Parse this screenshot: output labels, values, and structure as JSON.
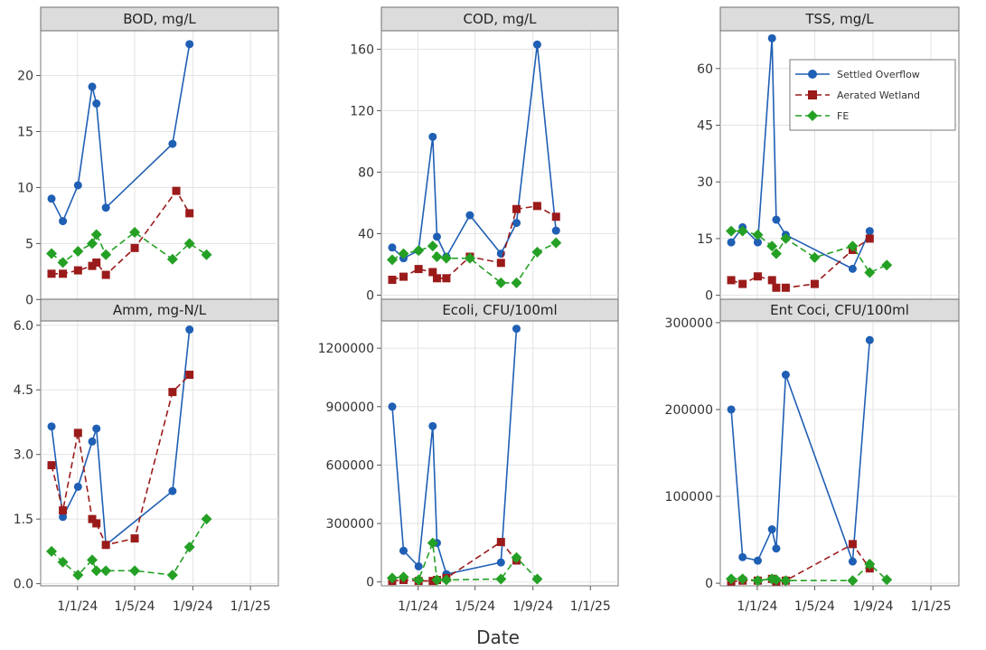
{
  "xlabel": "Date",
  "colors": {
    "Settled Overflow": "#1f5fb4",
    "Aerated Wetland": "#9b1b1b",
    "FE": "#24a024",
    "strip": "#dcdcdc",
    "grid": "#e3e3e3"
  },
  "legend": {
    "placement": "top-right of TSS panel",
    "entries": [
      "Settled Overflow",
      "Aerated Wetland",
      "FE"
    ]
  },
  "chart_data": [
    {
      "type": "line",
      "title": "BOD, mg/L",
      "xlabel": "Date",
      "x_ticks": [
        "1/1/24",
        "1/5/24",
        "1/9/24",
        "1/1/25"
      ],
      "xlim": [
        "2023-10-15",
        "2025-03-01"
      ],
      "ylim": [
        -0.3,
        24.0
      ],
      "y_ticks": [
        0,
        5,
        10,
        15,
        20
      ],
      "y_tick_labels": [
        "0",
        "5",
        "10",
        "15",
        "20"
      ],
      "grid": true,
      "series": [
        {
          "name": "Settled Overflow",
          "marker": "circle",
          "line": "solid",
          "points": [
            [
              "2023-11-07",
              9.0
            ],
            [
              "2023-12-01",
              7.0
            ],
            [
              "2024-01-02",
              10.2
            ],
            [
              "2024-02-01",
              19.0
            ],
            [
              "2024-02-10",
              17.5
            ],
            [
              "2024-03-01",
              8.2
            ],
            [
              "2024-07-20",
              13.9
            ],
            [
              "2024-08-25",
              22.8
            ]
          ]
        },
        {
          "name": "Aerated Wetland",
          "marker": "square",
          "line": "dashed",
          "points": [
            [
              "2023-11-07",
              2.3
            ],
            [
              "2023-12-01",
              2.3
            ],
            [
              "2024-01-02",
              2.6
            ],
            [
              "2024-02-01",
              3.0
            ],
            [
              "2024-02-10",
              3.3
            ],
            [
              "2024-03-01",
              2.2
            ],
            [
              "2024-05-01",
              4.6
            ],
            [
              "2024-07-28",
              9.7
            ],
            [
              "2024-08-25",
              7.7
            ]
          ]
        },
        {
          "name": "FE",
          "marker": "diamond",
          "line": "dashed",
          "points": [
            [
              "2023-11-07",
              4.1
            ],
            [
              "2023-12-01",
              3.3
            ],
            [
              "2024-01-02",
              4.3
            ],
            [
              "2024-02-01",
              5.0
            ],
            [
              "2024-02-10",
              5.8
            ],
            [
              "2024-03-01",
              4.0
            ],
            [
              "2024-05-01",
              6.0
            ],
            [
              "2024-07-20",
              3.6
            ],
            [
              "2024-08-25",
              5.0
            ],
            [
              "2024-09-30",
              4.0
            ]
          ]
        }
      ]
    },
    {
      "type": "line",
      "title": "COD, mg/L",
      "xlabel": "Date",
      "x_ticks": [
        "1/1/24",
        "1/5/24",
        "1/9/24",
        "1/1/25"
      ],
      "xlim": [
        "2023-10-15",
        "2025-03-01"
      ],
      "ylim": [
        -5,
        172
      ],
      "y_ticks": [
        0,
        40,
        80,
        120,
        160
      ],
      "y_tick_labels": [
        "0",
        "40",
        "80",
        "120",
        "160"
      ],
      "grid": true,
      "series": [
        {
          "name": "Settled Overflow",
          "marker": "circle",
          "line": "solid",
          "points": [
            [
              "2023-11-07",
              31
            ],
            [
              "2023-12-01",
              24
            ],
            [
              "2024-01-02",
              29
            ],
            [
              "2024-02-01",
              103
            ],
            [
              "2024-02-10",
              38
            ],
            [
              "2024-03-01",
              25
            ],
            [
              "2024-04-20",
              52
            ],
            [
              "2024-06-25",
              27
            ],
            [
              "2024-07-28",
              47
            ],
            [
              "2024-09-10",
              163
            ],
            [
              "2024-10-20",
              42
            ]
          ]
        },
        {
          "name": "Aerated Wetland",
          "marker": "square",
          "line": "dashed",
          "points": [
            [
              "2023-11-07",
              10
            ],
            [
              "2023-12-01",
              12
            ],
            [
              "2024-01-02",
              17
            ],
            [
              "2024-02-01",
              15
            ],
            [
              "2024-02-10",
              11
            ],
            [
              "2024-03-01",
              11
            ],
            [
              "2024-04-20",
              25
            ],
            [
              "2024-06-25",
              21
            ],
            [
              "2024-07-28",
              56
            ],
            [
              "2024-09-10",
              58
            ],
            [
              "2024-10-20",
              51
            ]
          ]
        },
        {
          "name": "FE",
          "marker": "diamond",
          "line": "dashed",
          "points": [
            [
              "2023-11-07",
              23
            ],
            [
              "2023-12-01",
              27
            ],
            [
              "2024-01-02",
              29
            ],
            [
              "2024-02-01",
              32
            ],
            [
              "2024-02-10",
              25
            ],
            [
              "2024-03-01",
              24
            ],
            [
              "2024-04-20",
              24
            ],
            [
              "2024-06-25",
              8
            ],
            [
              "2024-07-28",
              8
            ],
            [
              "2024-09-10",
              28
            ],
            [
              "2024-10-20",
              34
            ]
          ]
        }
      ]
    },
    {
      "type": "line",
      "title": "TSS, mg/L",
      "xlabel": "Date",
      "x_ticks": [
        "1/1/24",
        "1/5/24",
        "1/9/24",
        "1/1/25"
      ],
      "xlim": [
        "2023-10-15",
        "2025-03-01"
      ],
      "ylim": [
        -2,
        70
      ],
      "y_ticks": [
        0,
        15,
        30,
        45,
        60
      ],
      "y_tick_labels": [
        "0",
        "15",
        "30",
        "45",
        "60"
      ],
      "grid": true,
      "series": [
        {
          "name": "Settled Overflow",
          "marker": "circle",
          "line": "solid",
          "points": [
            [
              "2023-11-07",
              14
            ],
            [
              "2023-12-01",
              18
            ],
            [
              "2024-01-02",
              14
            ],
            [
              "2024-02-01",
              68
            ],
            [
              "2024-02-10",
              20
            ],
            [
              "2024-03-01",
              16
            ],
            [
              "2024-07-20",
              7
            ],
            [
              "2024-08-25",
              17
            ]
          ]
        },
        {
          "name": "Aerated Wetland",
          "marker": "square",
          "line": "dashed",
          "points": [
            [
              "2023-11-07",
              4
            ],
            [
              "2023-12-01",
              3
            ],
            [
              "2024-01-02",
              5
            ],
            [
              "2024-02-01",
              4
            ],
            [
              "2024-02-10",
              2
            ],
            [
              "2024-03-01",
              2
            ],
            [
              "2024-05-01",
              3
            ],
            [
              "2024-07-20",
              12
            ],
            [
              "2024-08-25",
              15
            ]
          ]
        },
        {
          "name": "FE",
          "marker": "diamond",
          "line": "dashed",
          "points": [
            [
              "2023-11-07",
              17
            ],
            [
              "2023-12-01",
              17
            ],
            [
              "2024-01-02",
              16
            ],
            [
              "2024-02-01",
              13
            ],
            [
              "2024-02-10",
              11
            ],
            [
              "2024-03-01",
              15
            ],
            [
              "2024-05-01",
              10
            ],
            [
              "2024-07-20",
              13
            ],
            [
              "2024-08-25",
              6
            ],
            [
              "2024-09-30",
              8
            ]
          ]
        }
      ]
    },
    {
      "type": "line",
      "title": "Amm, mg-N/L",
      "xlabel": "Date",
      "x_ticks": [
        "1/1/24",
        "1/5/24",
        "1/9/24",
        "1/1/25"
      ],
      "xlim": [
        "2023-10-15",
        "2025-03-01"
      ],
      "ylim": [
        -0.05,
        6.1
      ],
      "y_ticks": [
        0,
        1.5,
        3.0,
        4.5,
        6.0
      ],
      "y_tick_labels": [
        "0.0",
        "1.5",
        "3.0",
        "4.5",
        "6.0"
      ],
      "grid": true,
      "series": [
        {
          "name": "Settled Overflow",
          "marker": "circle",
          "line": "solid",
          "points": [
            [
              "2023-11-07",
              3.65
            ],
            [
              "2023-12-01",
              1.55
            ],
            [
              "2024-01-02",
              2.25
            ],
            [
              "2024-02-01",
              3.3
            ],
            [
              "2024-02-10",
              3.6
            ],
            [
              "2024-03-01",
              0.9
            ],
            [
              "2024-07-20",
              2.15
            ],
            [
              "2024-08-25",
              5.9
            ]
          ]
        },
        {
          "name": "Aerated Wetland",
          "marker": "square",
          "line": "dashed",
          "points": [
            [
              "2023-11-07",
              2.75
            ],
            [
              "2023-12-01",
              1.7
            ],
            [
              "2024-01-02",
              3.5
            ],
            [
              "2024-02-01",
              1.5
            ],
            [
              "2024-02-10",
              1.4
            ],
            [
              "2024-03-01",
              0.9
            ],
            [
              "2024-05-01",
              1.05
            ],
            [
              "2024-07-20",
              4.45
            ],
            [
              "2024-08-25",
              4.85
            ]
          ]
        },
        {
          "name": "FE",
          "marker": "diamond",
          "line": "dashed",
          "points": [
            [
              "2023-11-07",
              0.75
            ],
            [
              "2023-12-01",
              0.5
            ],
            [
              "2024-01-02",
              0.2
            ],
            [
              "2024-02-01",
              0.55
            ],
            [
              "2024-02-10",
              0.3
            ],
            [
              "2024-03-01",
              0.3
            ],
            [
              "2024-05-01",
              0.3
            ],
            [
              "2024-07-20",
              0.2
            ],
            [
              "2024-08-25",
              0.85
            ],
            [
              "2024-09-30",
              1.5
            ]
          ]
        }
      ]
    },
    {
      "type": "line",
      "title": "Ecoli, CFU/100ml",
      "xlabel": "Date",
      "x_ticks": [
        "1/1/24",
        "1/5/24",
        "1/9/24",
        "1/1/25"
      ],
      "xlim": [
        "2023-10-15",
        "2025-03-01"
      ],
      "ylim": [
        -20000,
        1340000
      ],
      "y_ticks": [
        0,
        300000,
        600000,
        900000,
        1200000
      ],
      "y_tick_labels": [
        "0",
        "300000",
        "600000",
        "900000",
        "1200000"
      ],
      "grid": true,
      "series": [
        {
          "name": "Settled Overflow",
          "marker": "circle",
          "line": "solid",
          "points": [
            [
              "2023-11-07",
              900000
            ],
            [
              "2023-12-01",
              160000
            ],
            [
              "2024-01-02",
              80000
            ],
            [
              "2024-02-01",
              800000
            ],
            [
              "2024-02-10",
              200000
            ],
            [
              "2024-03-01",
              40000
            ],
            [
              "2024-06-25",
              100000
            ],
            [
              "2024-07-28",
              1300000
            ]
          ]
        },
        {
          "name": "Aerated Wetland",
          "marker": "square",
          "line": "dashed",
          "points": [
            [
              "2023-11-07",
              5000
            ],
            [
              "2023-12-01",
              10000
            ],
            [
              "2024-01-02",
              5000
            ],
            [
              "2024-02-01",
              5000
            ],
            [
              "2024-02-10",
              10000
            ],
            [
              "2024-03-01",
              20000
            ],
            [
              "2024-06-25",
              205000
            ],
            [
              "2024-07-28",
              110000
            ]
          ]
        },
        {
          "name": "FE",
          "marker": "diamond",
          "line": "dashed",
          "points": [
            [
              "2023-11-07",
              20000
            ],
            [
              "2023-12-01",
              25000
            ],
            [
              "2024-01-02",
              10000
            ],
            [
              "2024-02-01",
              200000
            ],
            [
              "2024-02-10",
              10000
            ],
            [
              "2024-03-01",
              10000
            ],
            [
              "2024-06-25",
              15000
            ],
            [
              "2024-07-28",
              125000
            ],
            [
              "2024-09-10",
              15000
            ]
          ]
        }
      ]
    },
    {
      "type": "line",
      "title": "Ent Coci, CFU/100ml",
      "xlabel": "Date",
      "x_ticks": [
        "1/1/24",
        "1/5/24",
        "1/9/24",
        "1/1/25"
      ],
      "xlim": [
        "2023-10-15",
        "2025-03-01"
      ],
      "ylim": [
        -3000,
        302000
      ],
      "y_ticks": [
        0,
        100000,
        200000,
        300000
      ],
      "y_tick_labels": [
        "0",
        "100000",
        "200000",
        "300000"
      ],
      "grid": true,
      "series": [
        {
          "name": "Settled Overflow",
          "marker": "circle",
          "line": "solid",
          "points": [
            [
              "2023-11-07",
              200000
            ],
            [
              "2023-12-01",
              30000
            ],
            [
              "2024-01-02",
              26000
            ],
            [
              "2024-02-01",
              62000
            ],
            [
              "2024-02-10",
              40000
            ],
            [
              "2024-03-01",
              240000
            ],
            [
              "2024-07-20",
              25000
            ],
            [
              "2024-08-25",
              280000
            ]
          ]
        },
        {
          "name": "Aerated Wetland",
          "marker": "square",
          "line": "dashed",
          "points": [
            [
              "2023-11-07",
              2000
            ],
            [
              "2023-12-01",
              3000
            ],
            [
              "2024-01-02",
              3000
            ],
            [
              "2024-02-01",
              5000
            ],
            [
              "2024-02-10",
              2000
            ],
            [
              "2024-03-01",
              3000
            ],
            [
              "2024-07-20",
              45000
            ],
            [
              "2024-08-25",
              17000
            ]
          ]
        },
        {
          "name": "FE",
          "marker": "diamond",
          "line": "dashed",
          "points": [
            [
              "2023-11-07",
              5000
            ],
            [
              "2023-12-01",
              5000
            ],
            [
              "2024-01-02",
              3000
            ],
            [
              "2024-02-01",
              5000
            ],
            [
              "2024-02-10",
              4000
            ],
            [
              "2024-03-01",
              3000
            ],
            [
              "2024-07-20",
              3000
            ],
            [
              "2024-08-25",
              22000
            ],
            [
              "2024-09-30",
              4000
            ]
          ]
        }
      ]
    }
  ]
}
